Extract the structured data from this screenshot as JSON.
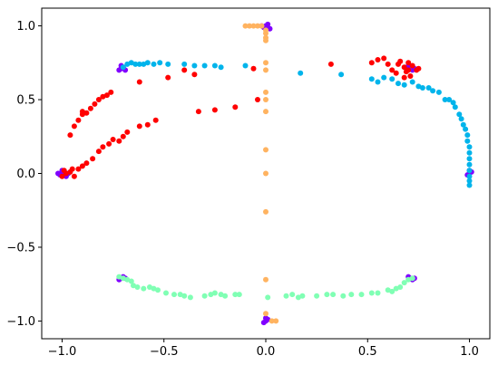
{
  "chart_data": {
    "type": "scatter",
    "title": "",
    "xlabel": "",
    "ylabel": "",
    "xlim": [
      -1.1,
      1.1
    ],
    "ylim": [
      -1.12,
      1.12
    ],
    "grid": false,
    "legend": "none",
    "x_ticks": [
      -1.0,
      -0.5,
      0.0,
      0.5,
      1.0
    ],
    "y_ticks": [
      -1.0,
      -0.5,
      0.0,
      0.5,
      1.0
    ],
    "x_tick_labels": [
      "−1.0",
      "−0.5",
      "0.0",
      "0.5",
      "1.0"
    ],
    "y_tick_labels": [
      "−1.0",
      "−0.5",
      "0.0",
      "0.5",
      "1.0"
    ],
    "series": [
      {
        "color": "#8000ff",
        "points": [
          [
            -1.0,
            0.0
          ],
          [
            -0.99,
            0.01
          ],
          [
            -1.01,
            -0.01
          ],
          [
            -0.98,
            -0.02
          ],
          [
            -1.0,
            0.02
          ],
          [
            -0.97,
            0.0
          ],
          [
            -1.02,
            0.0
          ],
          [
            -0.71,
            0.71
          ],
          [
            -0.7,
            0.72
          ],
          [
            -0.72,
            0.7
          ],
          [
            -0.69,
            0.7
          ],
          [
            -0.71,
            0.73
          ],
          [
            0.0,
            1.0
          ],
          [
            0.01,
            1.01
          ],
          [
            -0.01,
            0.99
          ],
          [
            0.02,
            0.98
          ],
          [
            -0.02,
            1.0
          ],
          [
            0.7,
            0.71
          ],
          [
            0.71,
            0.72
          ],
          [
            0.72,
            0.7
          ],
          [
            0.69,
            0.72
          ],
          [
            0.73,
            0.71
          ],
          [
            1.0,
            0.0
          ],
          [
            1.01,
            0.01
          ],
          [
            0.99,
            -0.01
          ],
          [
            1.0,
            0.02
          ],
          [
            -0.71,
            -0.71
          ],
          [
            -0.7,
            -0.7
          ],
          [
            -0.72,
            -0.72
          ],
          [
            -0.69,
            -0.71
          ],
          [
            0.0,
            -1.0
          ],
          [
            0.01,
            -0.99
          ],
          [
            -0.01,
            -1.01
          ],
          [
            0.0,
            -0.98
          ],
          [
            0.71,
            -0.71
          ],
          [
            0.7,
            -0.7
          ],
          [
            0.72,
            -0.72
          ],
          [
            0.73,
            -0.71
          ]
        ]
      },
      {
        "color": "#00b4eb",
        "points": [
          [
            -0.7,
            0.72
          ],
          [
            -0.68,
            0.74
          ],
          [
            -0.66,
            0.75
          ],
          [
            -0.64,
            0.74
          ],
          [
            -0.62,
            0.74
          ],
          [
            -0.6,
            0.74
          ],
          [
            -0.58,
            0.75
          ],
          [
            -0.55,
            0.74
          ],
          [
            -0.52,
            0.75
          ],
          [
            -0.48,
            0.74
          ],
          [
            -0.4,
            0.74
          ],
          [
            -0.35,
            0.73
          ],
          [
            -0.3,
            0.73
          ],
          [
            -0.25,
            0.73
          ],
          [
            -0.22,
            0.72
          ],
          [
            -0.1,
            0.73
          ],
          [
            0.17,
            0.68
          ],
          [
            0.37,
            0.67
          ],
          [
            0.52,
            0.64
          ],
          [
            0.55,
            0.62
          ],
          [
            0.58,
            0.65
          ],
          [
            0.62,
            0.64
          ],
          [
            0.65,
            0.61
          ],
          [
            0.68,
            0.6
          ],
          [
            0.72,
            0.62
          ],
          [
            0.75,
            0.59
          ],
          [
            0.77,
            0.58
          ],
          [
            0.8,
            0.58
          ],
          [
            0.82,
            0.56
          ],
          [
            0.85,
            0.55
          ],
          [
            0.88,
            0.5
          ],
          [
            0.9,
            0.5
          ],
          [
            0.92,
            0.48
          ],
          [
            0.93,
            0.45
          ],
          [
            0.95,
            0.4
          ],
          [
            0.96,
            0.37
          ],
          [
            0.97,
            0.33
          ],
          [
            0.98,
            0.3
          ],
          [
            0.99,
            0.26
          ],
          [
            0.99,
            0.22
          ],
          [
            1.0,
            0.18
          ],
          [
            1.0,
            0.14
          ],
          [
            1.0,
            0.1
          ],
          [
            1.0,
            0.06
          ],
          [
            1.0,
            0.02
          ],
          [
            1.0,
            -0.02
          ],
          [
            1.0,
            -0.05
          ],
          [
            1.0,
            -0.08
          ]
        ]
      },
      {
        "color": "#80ffb4",
        "points": [
          [
            -0.72,
            -0.7
          ],
          [
            -0.7,
            -0.71
          ],
          [
            -0.68,
            -0.72
          ],
          [
            -0.66,
            -0.73
          ],
          [
            -0.65,
            -0.76
          ],
          [
            -0.63,
            -0.77
          ],
          [
            -0.6,
            -0.78
          ],
          [
            -0.57,
            -0.77
          ],
          [
            -0.55,
            -0.78
          ],
          [
            -0.53,
            -0.79
          ],
          [
            -0.49,
            -0.81
          ],
          [
            -0.45,
            -0.82
          ],
          [
            -0.42,
            -0.82
          ],
          [
            -0.4,
            -0.83
          ],
          [
            -0.37,
            -0.84
          ],
          [
            -0.3,
            -0.83
          ],
          [
            -0.27,
            -0.82
          ],
          [
            -0.25,
            -0.81
          ],
          [
            -0.22,
            -0.82
          ],
          [
            -0.2,
            -0.83
          ],
          [
            -0.15,
            -0.82
          ],
          [
            -0.13,
            -0.82
          ],
          [
            0.01,
            -0.84
          ],
          [
            0.1,
            -0.83
          ],
          [
            0.13,
            -0.82
          ],
          [
            0.16,
            -0.84
          ],
          [
            0.18,
            -0.83
          ],
          [
            0.25,
            -0.83
          ],
          [
            0.3,
            -0.82
          ],
          [
            0.33,
            -0.82
          ],
          [
            0.38,
            -0.83
          ],
          [
            0.42,
            -0.82
          ],
          [
            0.47,
            -0.82
          ],
          [
            0.52,
            -0.81
          ],
          [
            0.55,
            -0.81
          ],
          [
            0.6,
            -0.79
          ],
          [
            0.62,
            -0.8
          ],
          [
            0.64,
            -0.78
          ],
          [
            0.66,
            -0.77
          ],
          [
            0.68,
            -0.74
          ],
          [
            0.7,
            -0.72
          ],
          [
            0.72,
            -0.71
          ]
        ]
      },
      {
        "color": "#ffb360",
        "points": [
          [
            -0.1,
            1.0
          ],
          [
            -0.08,
            1.0
          ],
          [
            -0.06,
            1.0
          ],
          [
            -0.04,
            1.0
          ],
          [
            -0.02,
            1.0
          ],
          [
            0.0,
            0.97
          ],
          [
            0.0,
            0.95
          ],
          [
            0.0,
            0.92
          ],
          [
            0.0,
            0.9
          ],
          [
            0.0,
            0.75
          ],
          [
            0.0,
            0.7
          ],
          [
            0.0,
            0.55
          ],
          [
            0.0,
            0.5
          ],
          [
            0.0,
            0.42
          ],
          [
            0.0,
            0.16
          ],
          [
            0.0,
            0.0
          ],
          [
            0.0,
            -0.26
          ],
          [
            0.0,
            -0.72
          ],
          [
            0.0,
            -0.95
          ],
          [
            0.03,
            -1.0
          ],
          [
            0.05,
            -1.0
          ]
        ]
      },
      {
        "color": "#ff0000",
        "points": [
          [
            -1.0,
            -0.02
          ],
          [
            -0.99,
            0.02
          ],
          [
            -0.98,
            0.0
          ],
          [
            -0.96,
            0.01
          ],
          [
            -0.94,
            -0.02
          ],
          [
            -0.95,
            0.03
          ],
          [
            -0.92,
            0.03
          ],
          [
            -0.9,
            0.05
          ],
          [
            -0.88,
            0.07
          ],
          [
            -0.85,
            0.1
          ],
          [
            -0.82,
            0.15
          ],
          [
            -0.8,
            0.18
          ],
          [
            -0.77,
            0.2
          ],
          [
            -0.75,
            0.23
          ],
          [
            -0.72,
            0.22
          ],
          [
            -0.7,
            0.25
          ],
          [
            -0.68,
            0.28
          ],
          [
            -0.62,
            0.32
          ],
          [
            -0.58,
            0.33
          ],
          [
            -0.54,
            0.36
          ],
          [
            -0.96,
            0.26
          ],
          [
            -0.94,
            0.32
          ],
          [
            -0.92,
            0.36
          ],
          [
            -0.9,
            0.4
          ],
          [
            -0.9,
            0.42
          ],
          [
            -0.88,
            0.41
          ],
          [
            -0.86,
            0.44
          ],
          [
            -0.84,
            0.47
          ],
          [
            -0.82,
            0.5
          ],
          [
            -0.8,
            0.52
          ],
          [
            -0.78,
            0.53
          ],
          [
            -0.76,
            0.55
          ],
          [
            -0.62,
            0.62
          ],
          [
            -0.48,
            0.65
          ],
          [
            -0.4,
            0.7
          ],
          [
            -0.35,
            0.67
          ],
          [
            -0.33,
            0.42
          ],
          [
            -0.25,
            0.43
          ],
          [
            -0.15,
            0.45
          ],
          [
            -0.04,
            0.5
          ],
          [
            -0.06,
            0.71
          ],
          [
            0.32,
            0.74
          ],
          [
            0.52,
            0.75
          ],
          [
            0.55,
            0.77
          ],
          [
            0.58,
            0.78
          ],
          [
            0.6,
            0.74
          ],
          [
            0.62,
            0.7
          ],
          [
            0.64,
            0.68
          ],
          [
            0.65,
            0.74
          ],
          [
            0.66,
            0.76
          ],
          [
            0.68,
            0.72
          ],
          [
            0.68,
            0.65
          ],
          [
            0.69,
            0.69
          ],
          [
            0.7,
            0.75
          ],
          [
            0.7,
            0.7
          ],
          [
            0.71,
            0.66
          ],
          [
            0.72,
            0.73
          ],
          [
            0.74,
            0.7
          ],
          [
            0.75,
            0.71
          ]
        ]
      }
    ]
  }
}
